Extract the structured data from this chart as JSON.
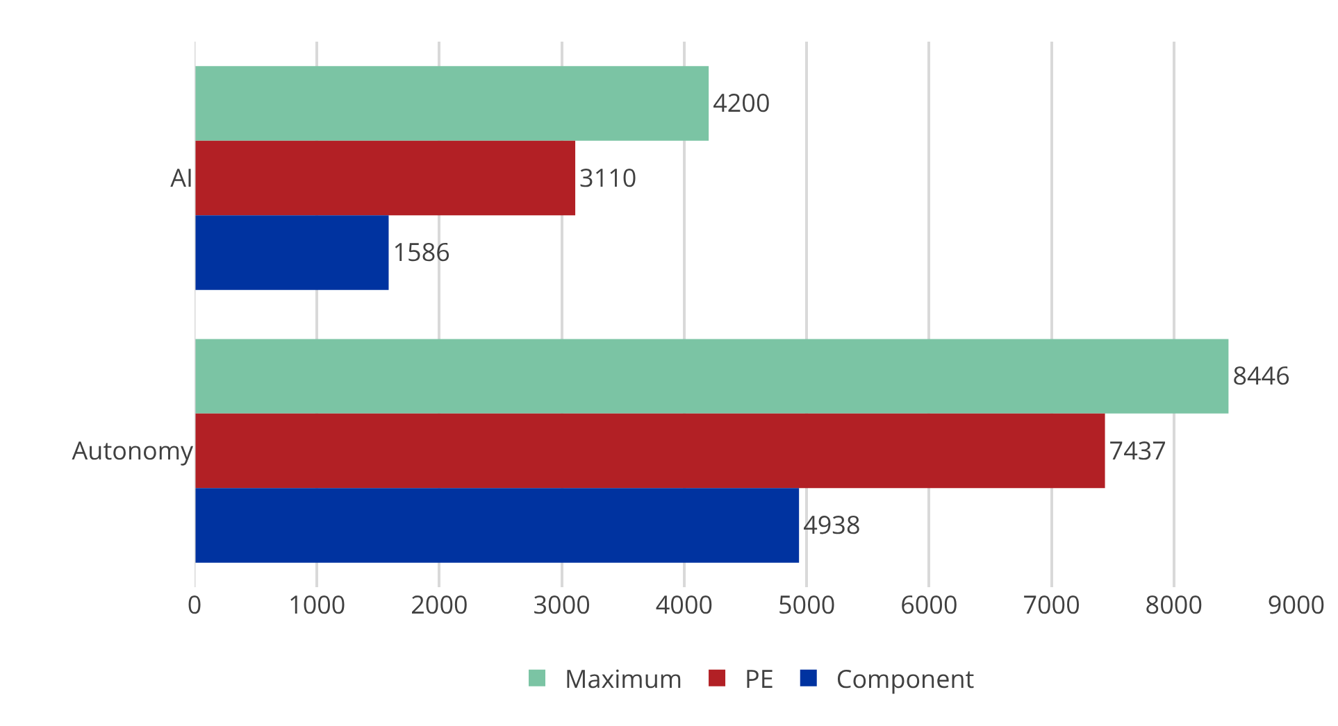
{
  "chart_data": {
    "type": "bar",
    "orientation": "horizontal",
    "categories": [
      "AI",
      "Autonomy"
    ],
    "series": [
      {
        "name": "Maximum",
        "color": "#7bc4a4",
        "values": [
          4200,
          8446
        ]
      },
      {
        "name": "PE",
        "color": "#b22025",
        "values": [
          3110,
          7437
        ]
      },
      {
        "name": "Component",
        "color": "#0033a0",
        "values": [
          1586,
          4938
        ]
      }
    ],
    "xlim": [
      0,
      9000
    ],
    "xticks": [
      0,
      1000,
      2000,
      3000,
      4000,
      5000,
      6000,
      7000,
      8000,
      9000
    ],
    "grid": "x",
    "legend": "bottom",
    "data_labels": true
  }
}
